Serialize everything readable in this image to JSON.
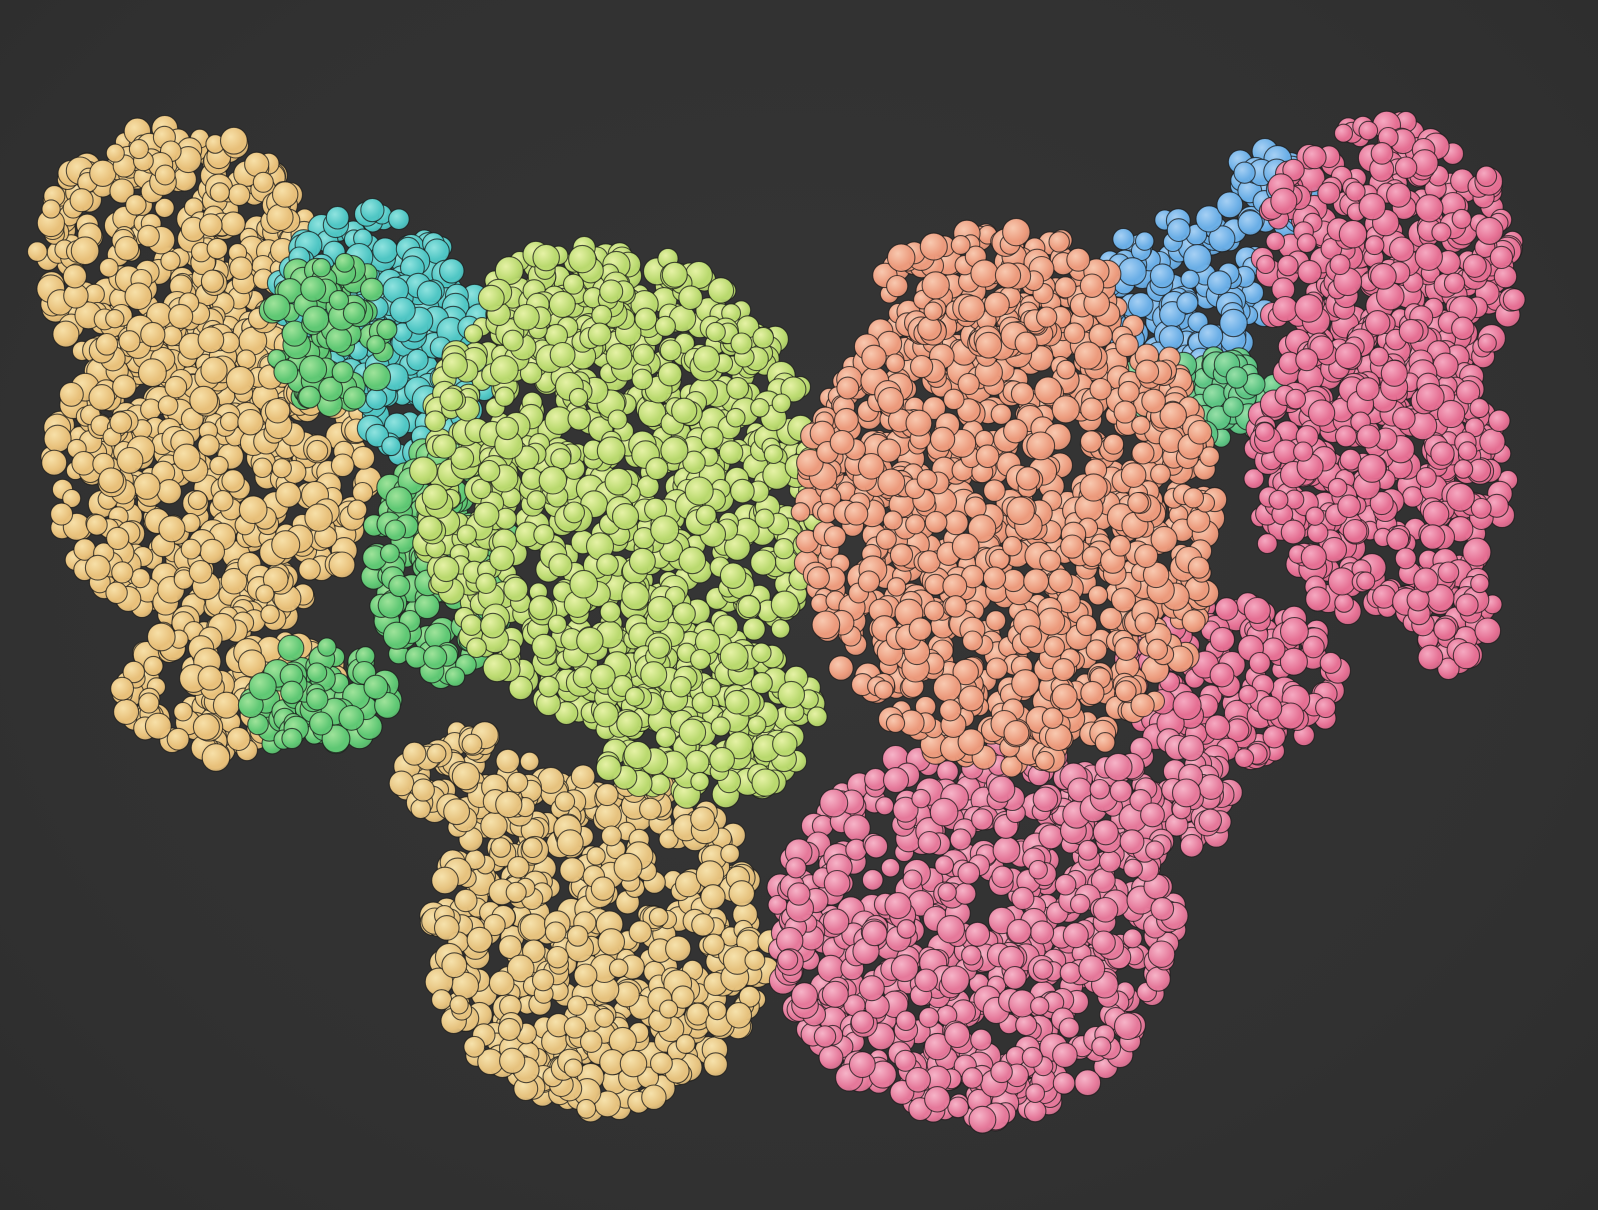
{
  "scene": {
    "subject": "protein-structure-spacefill",
    "background_color": "#333333",
    "outline_color": "#1a1a1a",
    "domains": [
      {
        "name": "tan-upper-left",
        "base": "#e8c07a",
        "light": "#f7e0a8"
      },
      {
        "name": "teal-upper-left",
        "base": "#4fc6c4",
        "light": "#8fe3df"
      },
      {
        "name": "green-upper-left",
        "base": "#5fc874",
        "light": "#9fe39a"
      },
      {
        "name": "lime-center-left",
        "base": "#b9d96e",
        "light": "#e6f2a6"
      },
      {
        "name": "tan-lower-left",
        "base": "#e6c27e",
        "light": "#f6e2ac"
      },
      {
        "name": "salmon-center-right",
        "base": "#ec9a7c",
        "light": "#f8c9b0"
      },
      {
        "name": "blue-upper-right",
        "base": "#6aaee6",
        "light": "#a6d0f4"
      },
      {
        "name": "green-upper-right",
        "base": "#5cc483",
        "light": "#98e0a8"
      },
      {
        "name": "pink-upper-right",
        "base": "#e56f93",
        "light": "#f5a9c1"
      },
      {
        "name": "pink-lower-right",
        "base": "#e5789a",
        "light": "#f6b4c8"
      }
    ]
  }
}
